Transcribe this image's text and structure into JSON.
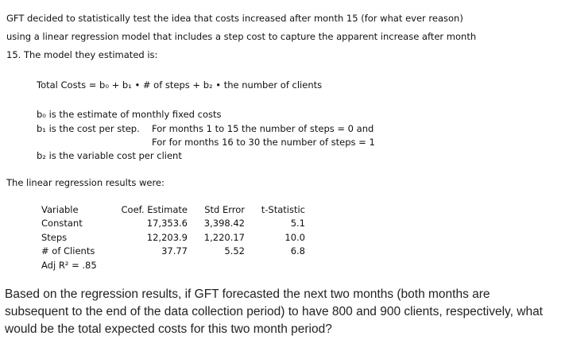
{
  "intro": {
    "line1": "GFT decided to statistically test the idea that costs increased after month 15 (for what ever reason)",
    "line2": "using a linear regression model that includes a step cost to capture the apparent increase after month",
    "line3": "15. The model they estimated is:"
  },
  "formula": "Total Costs = b₀ + b₁ • # of steps + b₂ • the number of clients",
  "definitions": {
    "b0": "b₀ is the estimate of monthly fixed costs",
    "b1": "b₁ is the cost per step.",
    "b1_note1": "For months 1 to 15 the number of steps = 0 and",
    "b1_note2": "For for months 16 to 30 the number of steps = 1",
    "b2": "b₂ is the variable cost per client"
  },
  "results_intro": "The linear regression results were:",
  "table": {
    "headers": [
      "Variable",
      "Coef. Estimate",
      "Std Error",
      "t-Statistic"
    ],
    "rows": [
      [
        "Constant",
        "17,353.6",
        "3,398.42",
        "5.1"
      ],
      [
        "Steps",
        "12,203.9",
        "1,220.17",
        "10.0"
      ],
      [
        "# of Clients",
        "37.77",
        "5.52",
        "6.8"
      ]
    ],
    "adj_r2": "Adj R² = .85"
  },
  "question": {
    "line1": "Based on the regression results, if GFT forecasted the next two months (both months are",
    "line2": "subsequent to the end of the data collection period) to have 800 and 900 clients, respectively, what",
    "line3": "would be the total expected costs for this two month period?"
  }
}
